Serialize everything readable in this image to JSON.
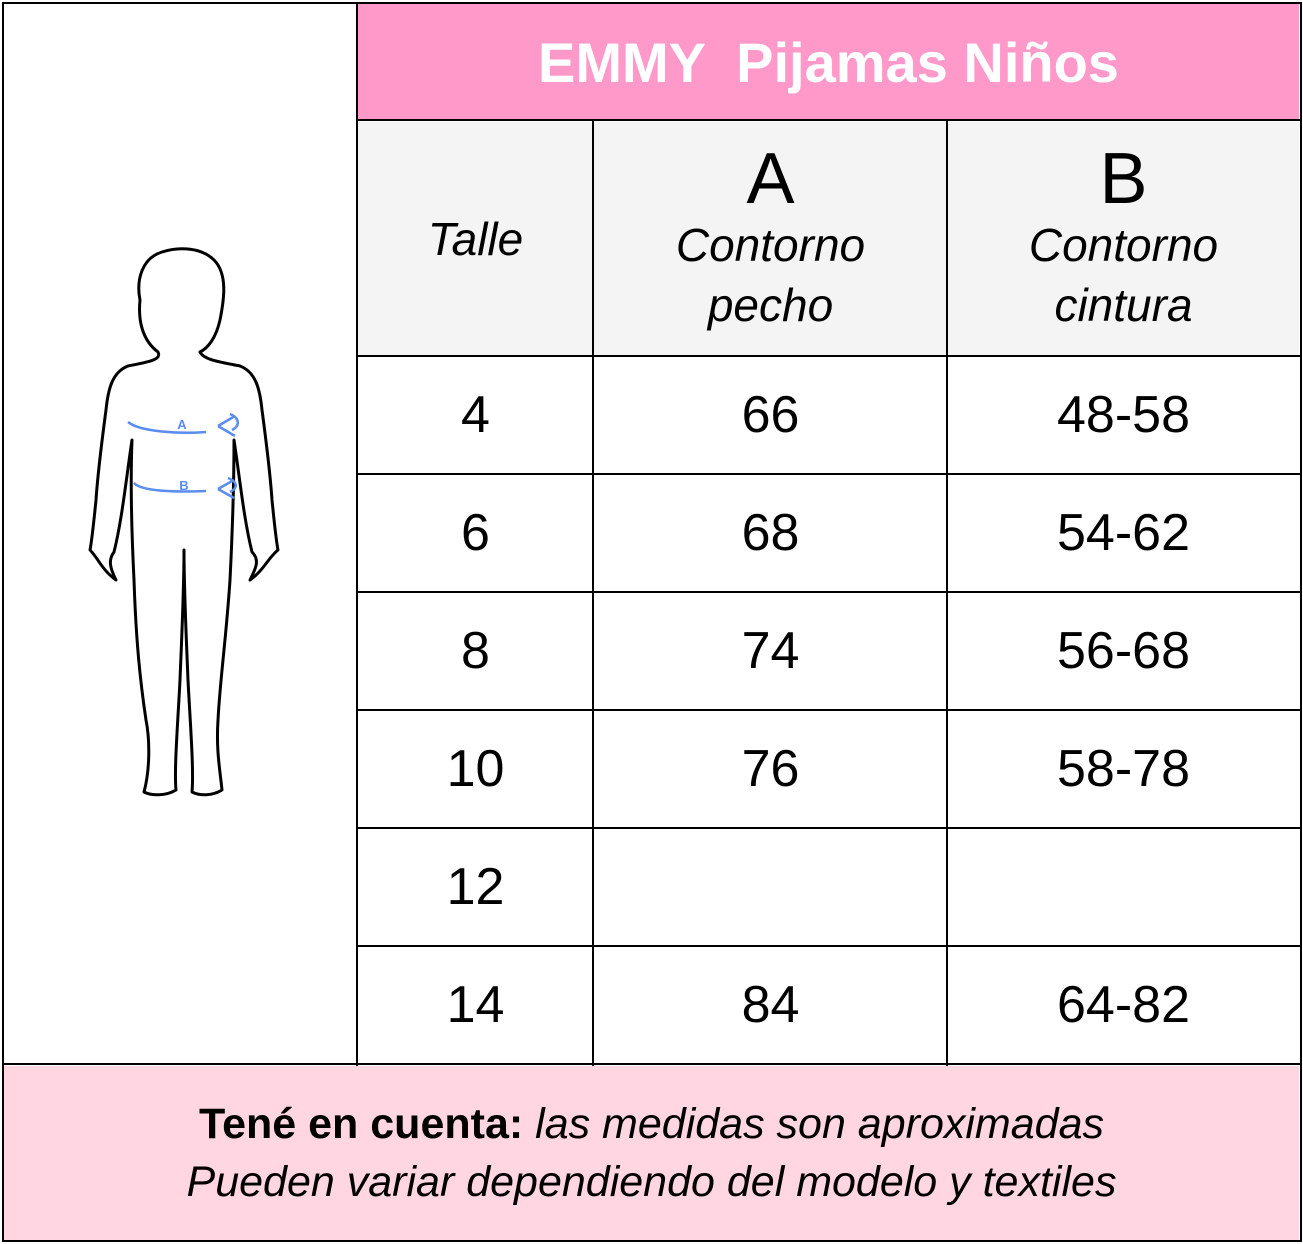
{
  "title": "EMMY  Pijamas Niños",
  "figure": {
    "label_a": "A",
    "label_b": "B",
    "accent_color": "#5b8def"
  },
  "headers": [
    {
      "letter": "",
      "line1": "Talle",
      "line2": ""
    },
    {
      "letter": "A",
      "line1": "Contorno",
      "line2": "pecho"
    },
    {
      "letter": "B",
      "line1": "Contorno",
      "line2": "cintura"
    }
  ],
  "rows": [
    [
      "4",
      "66",
      "48-58"
    ],
    [
      "6",
      "68",
      "54-62"
    ],
    [
      "8",
      "74",
      "56-68"
    ],
    [
      "10",
      "76",
      "58-78"
    ],
    [
      "12",
      "",
      ""
    ],
    [
      "14",
      "84",
      "64-82"
    ]
  ],
  "footer": {
    "bold": "Tené en cuenta:",
    "line1_rest": " las medidas son aproximadas",
    "line2": "Pueden variar dependiendo del modelo y textiles"
  },
  "colors": {
    "title_bg": "#ff99c9",
    "header_bg": "#f4f4f4",
    "footer_bg": "#ffd6e2"
  }
}
